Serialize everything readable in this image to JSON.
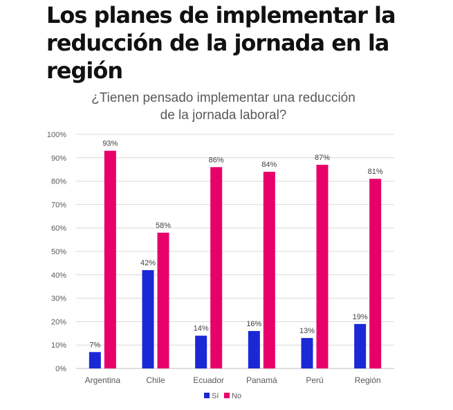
{
  "headline": "Los planes de implementar la reducción de la jornada en la región",
  "chart_data": {
    "type": "bar",
    "title": "¿Tienen pensado implementar una reducción de la jornada laboral?",
    "title_lines": [
      "¿Tienen pensado implementar una reducción",
      "de la jornada laboral?"
    ],
    "categories": [
      "Argentina",
      "Chile",
      "Ecuador",
      "Panamá",
      "Perú",
      "Región"
    ],
    "series": [
      {
        "name": "Sí",
        "color": "#1a28d6",
        "values": [
          7,
          42,
          14,
          16,
          13,
          19
        ]
      },
      {
        "name": "No",
        "color": "#e8006a",
        "values": [
          93,
          58,
          86,
          84,
          87,
          81
        ]
      }
    ],
    "ylim": [
      0,
      100
    ],
    "yticks": [
      "0%",
      "10%",
      "20%",
      "30%",
      "40%",
      "50%",
      "60%",
      "70%",
      "80%",
      "90%",
      "100%"
    ],
    "value_suffix": "%",
    "grid": true,
    "legend": "bottom",
    "xlabel": "",
    "ylabel": ""
  }
}
